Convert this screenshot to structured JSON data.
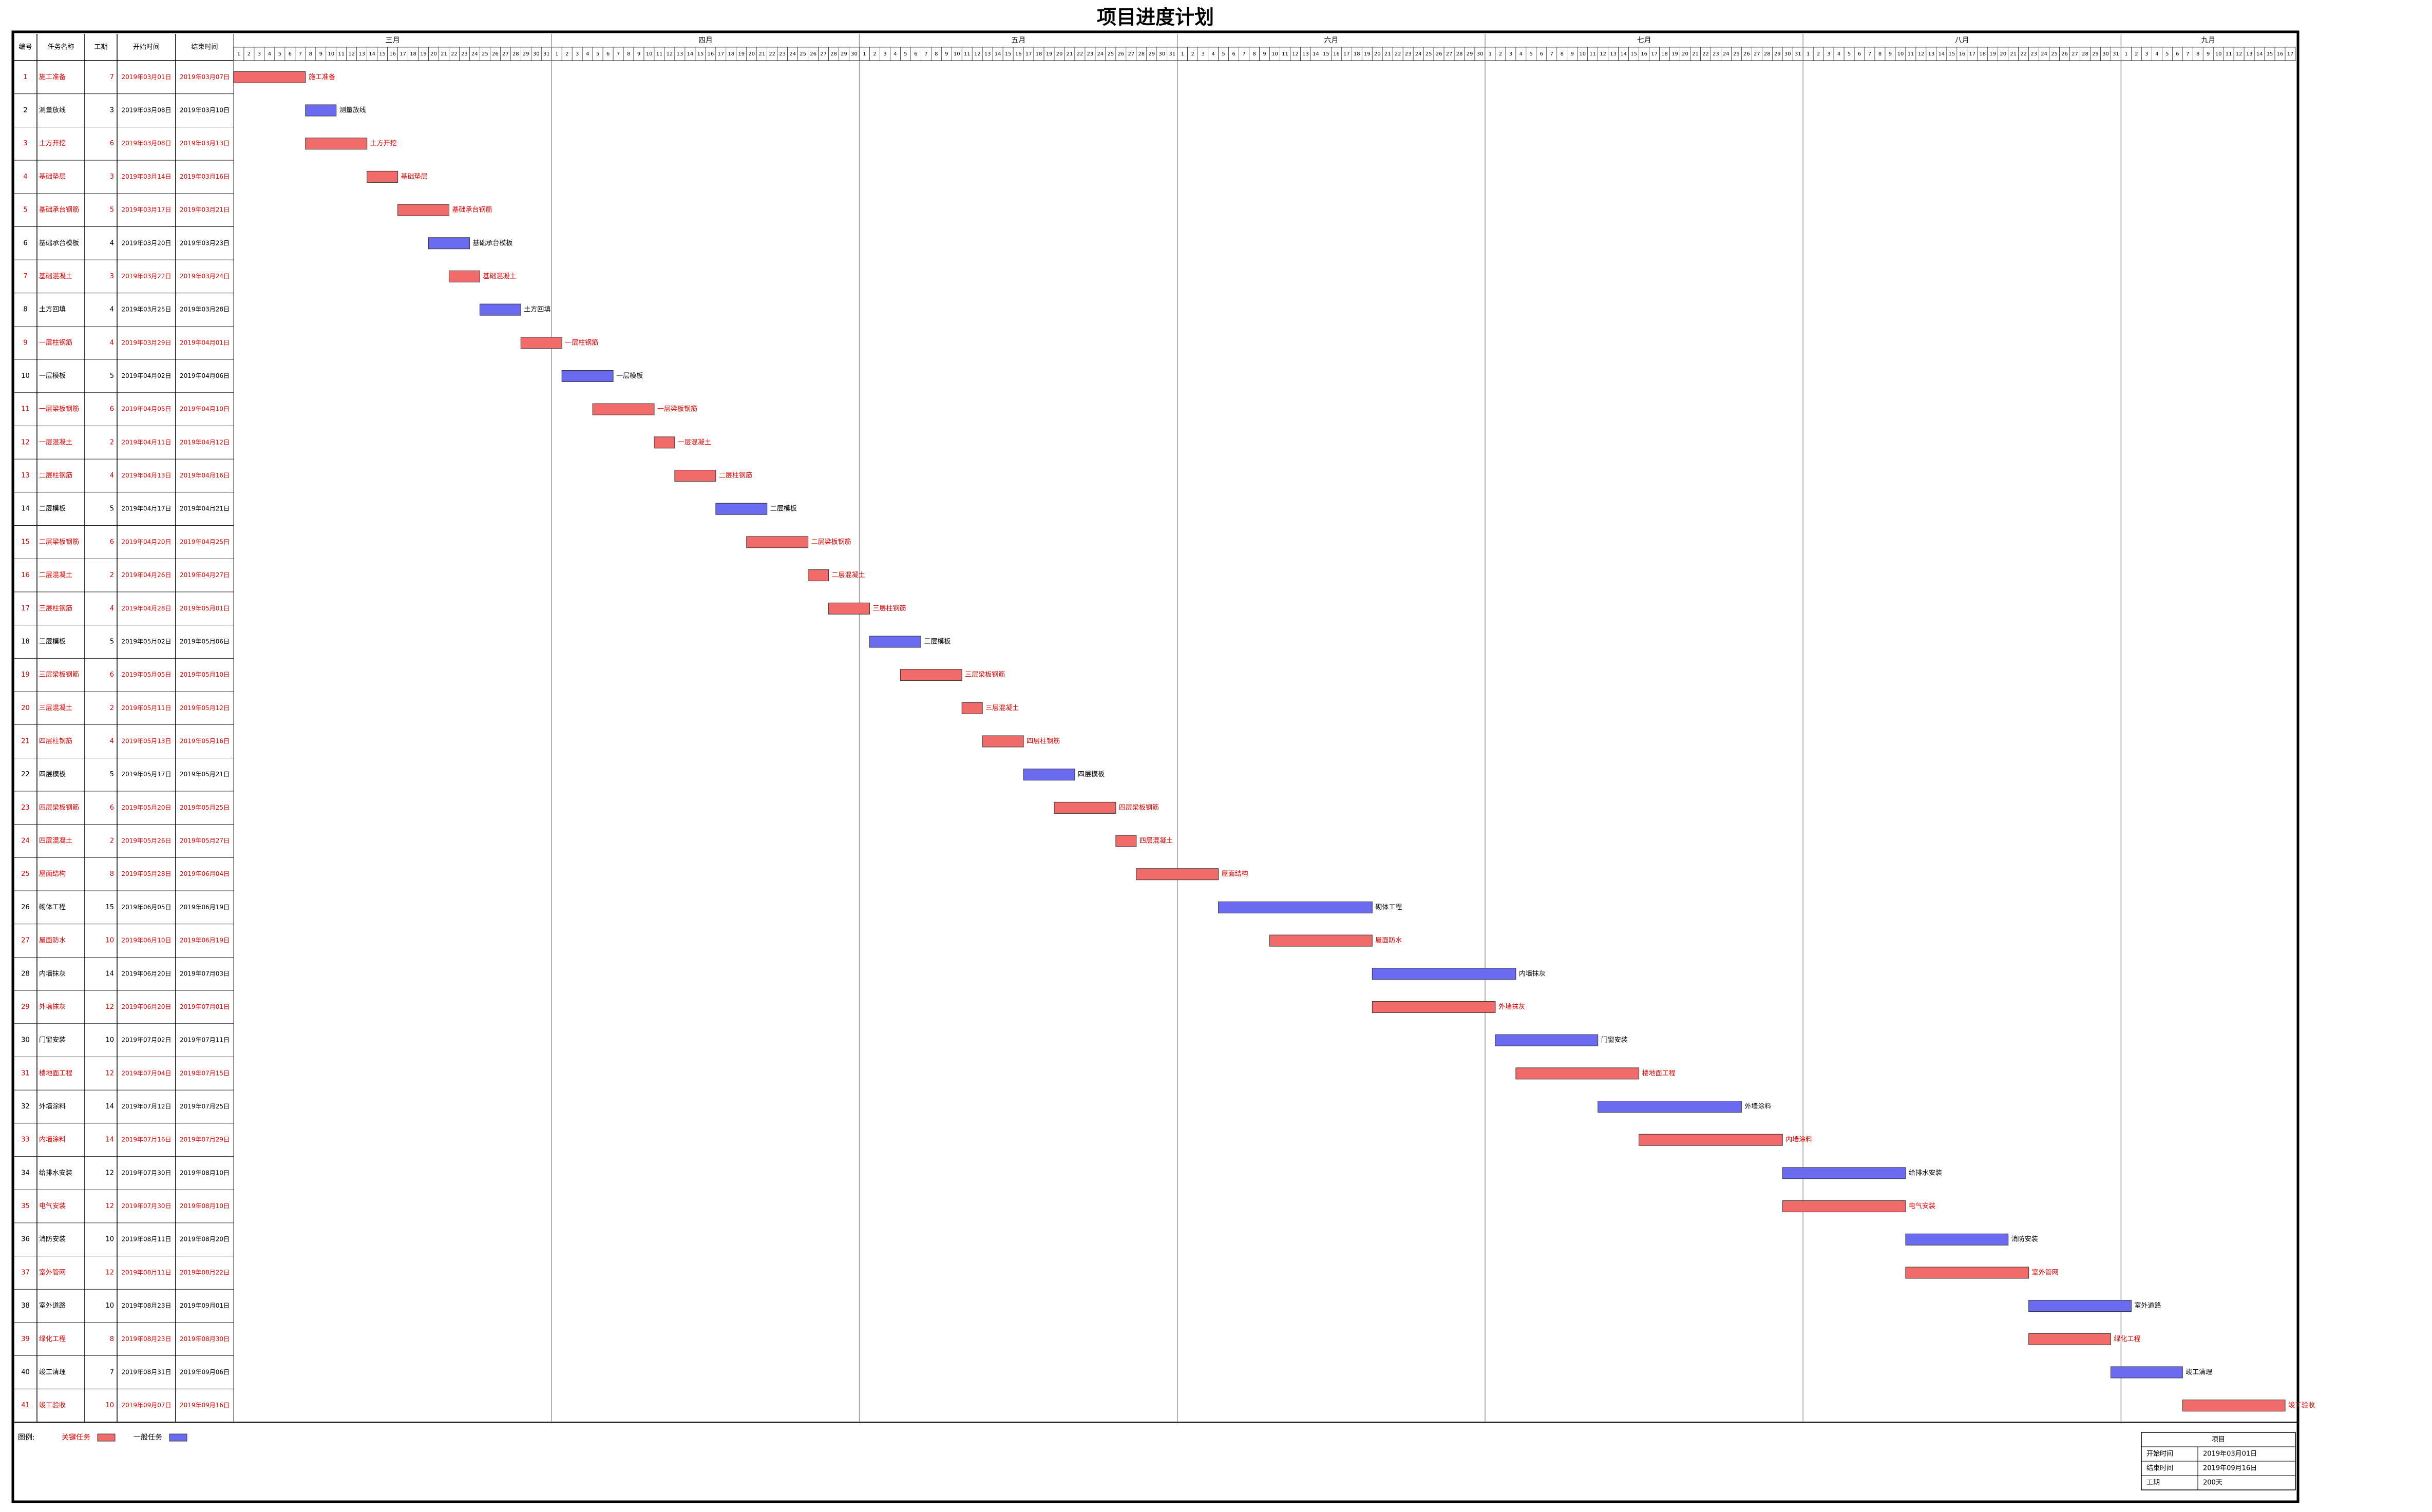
{
  "chart_data": {
    "type": "gantt",
    "title": "项目进度计划",
    "columns": [
      "编号",
      "任务名称",
      "工期",
      "开始时间",
      "结束时间"
    ],
    "months": [
      {
        "name": "三月",
        "days": [
          1,
          2,
          3,
          4,
          5,
          6,
          7,
          8,
          9,
          10,
          11,
          12,
          13,
          14,
          15,
          16,
          17,
          18,
          19,
          20,
          21,
          22,
          23,
          24,
          25,
          26,
          27,
          28,
          29,
          30,
          31
        ]
      },
      {
        "name": "四月",
        "days": [
          1,
          2,
          3,
          4,
          5,
          6,
          7,
          8,
          9,
          10,
          11,
          12,
          13,
          14,
          15,
          16,
          17,
          18,
          19,
          20,
          21,
          22,
          23,
          24,
          25,
          26,
          27,
          28,
          29,
          30
        ]
      },
      {
        "name": "五月",
        "days": [
          1,
          2,
          3,
          4,
          5,
          6,
          7,
          8,
          9,
          10,
          11,
          12,
          13,
          14,
          15,
          16,
          17,
          18,
          19,
          20,
          21,
          22,
          23,
          24,
          25,
          26,
          27,
          28,
          29,
          30,
          31
        ]
      },
      {
        "name": "六月",
        "days": [
          1,
          2,
          3,
          4,
          5,
          6,
          7,
          8,
          9,
          10,
          11,
          12,
          13,
          14,
          15,
          16,
          17,
          18,
          19,
          20,
          21,
          22,
          23,
          24,
          25,
          26,
          27,
          28,
          29,
          30
        ]
      },
      {
        "name": "七月",
        "days": [
          1,
          2,
          3,
          4,
          5,
          6,
          7,
          8,
          9,
          10,
          11,
          12,
          13,
          14,
          15,
          16,
          17,
          18,
          19,
          20,
          21,
          22,
          23,
          24,
          25,
          26,
          27,
          28,
          29,
          30,
          31
        ]
      },
      {
        "name": "八月",
        "days": [
          1,
          2,
          3,
          4,
          5,
          6,
          7,
          8,
          9,
          10,
          11,
          12,
          13,
          14,
          15,
          16,
          17,
          18,
          19,
          20,
          21,
          22,
          23,
          24,
          25,
          26,
          27,
          28,
          29,
          30,
          31
        ]
      },
      {
        "name": "九月",
        "days": [
          1,
          2,
          3,
          4,
          5,
          6,
          7,
          8,
          9,
          10,
          11,
          12,
          13,
          14,
          15,
          16,
          17
        ]
      }
    ],
    "tasks": [
      {
        "id": 1,
        "name": "施工准备",
        "duration": 7,
        "start": "2019年03月01日",
        "end": "2019年03月07日",
        "critical": true
      },
      {
        "id": 2,
        "name": "测量放线",
        "duration": 3,
        "start": "2019年03月08日",
        "end": "2019年03月10日",
        "critical": false
      },
      {
        "id": 3,
        "name": "土方开挖",
        "duration": 6,
        "start": "2019年03月08日",
        "end": "2019年03月13日",
        "critical": true
      },
      {
        "id": 4,
        "name": "基础垫层",
        "duration": 3,
        "start": "2019年03月14日",
        "end": "2019年03月16日",
        "critical": true
      },
      {
        "id": 5,
        "name": "基础承台钢筋",
        "duration": 5,
        "start": "2019年03月17日",
        "end": "2019年03月21日",
        "critical": true
      },
      {
        "id": 6,
        "name": "基础承台模板",
        "duration": 4,
        "start": "2019年03月20日",
        "end": "2019年03月23日",
        "critical": false
      },
      {
        "id": 7,
        "name": "基础混凝土",
        "duration": 3,
        "start": "2019年03月22日",
        "end": "2019年03月24日",
        "critical": true
      },
      {
        "id": 8,
        "name": "土方回填",
        "duration": 4,
        "start": "2019年03月25日",
        "end": "2019年03月28日",
        "critical": false
      },
      {
        "id": 9,
        "name": "一层柱钢筋",
        "duration": 4,
        "start": "2019年03月29日",
        "end": "2019年04月01日",
        "critical": true
      },
      {
        "id": 10,
        "name": "一层模板",
        "duration": 5,
        "start": "2019年04月02日",
        "end": "2019年04月06日",
        "critical": false
      },
      {
        "id": 11,
        "name": "一层梁板钢筋",
        "duration": 6,
        "start": "2019年04月05日",
        "end": "2019年04月10日",
        "critical": true
      },
      {
        "id": 12,
        "name": "一层混凝土",
        "duration": 2,
        "start": "2019年04月11日",
        "end": "2019年04月12日",
        "critical": true
      },
      {
        "id": 13,
        "name": "二层柱钢筋",
        "duration": 4,
        "start": "2019年04月13日",
        "end": "2019年04月16日",
        "critical": true
      },
      {
        "id": 14,
        "name": "二层模板",
        "duration": 5,
        "start": "2019年04月17日",
        "end": "2019年04月21日",
        "critical": false
      },
      {
        "id": 15,
        "name": "二层梁板钢筋",
        "duration": 6,
        "start": "2019年04月20日",
        "end": "2019年04月25日",
        "critical": true
      },
      {
        "id": 16,
        "name": "二层混凝土",
        "duration": 2,
        "start": "2019年04月26日",
        "end": "2019年04月27日",
        "critical": true
      },
      {
        "id": 17,
        "name": "三层柱钢筋",
        "duration": 4,
        "start": "2019年04月28日",
        "end": "2019年05月01日",
        "critical": true
      },
      {
        "id": 18,
        "name": "三层模板",
        "duration": 5,
        "start": "2019年05月02日",
        "end": "2019年05月06日",
        "critical": false
      },
      {
        "id": 19,
        "name": "三层梁板钢筋",
        "duration": 6,
        "start": "2019年05月05日",
        "end": "2019年05月10日",
        "critical": true
      },
      {
        "id": 20,
        "name": "三层混凝土",
        "duration": 2,
        "start": "2019年05月11日",
        "end": "2019年05月12日",
        "critical": true
      },
      {
        "id": 21,
        "name": "四层柱钢筋",
        "duration": 4,
        "start": "2019年05月13日",
        "end": "2019年05月16日",
        "critical": true
      },
      {
        "id": 22,
        "name": "四层模板",
        "duration": 5,
        "start": "2019年05月17日",
        "end": "2019年05月21日",
        "critical": false
      },
      {
        "id": 23,
        "name": "四层梁板钢筋",
        "duration": 6,
        "start": "2019年05月20日",
        "end": "2019年05月25日",
        "critical": true
      },
      {
        "id": 24,
        "name": "四层混凝土",
        "duration": 2,
        "start": "2019年05月26日",
        "end": "2019年05月27日",
        "critical": true
      },
      {
        "id": 25,
        "name": "屋面结构",
        "duration": 8,
        "start": "2019年05月28日",
        "end": "2019年06月04日",
        "critical": true
      },
      {
        "id": 26,
        "name": "砌体工程",
        "duration": 15,
        "start": "2019年06月05日",
        "end": "2019年06月19日",
        "critical": false
      },
      {
        "id": 27,
        "name": "屋面防水",
        "duration": 10,
        "start": "2019年06月10日",
        "end": "2019年06月19日",
        "critical": true
      },
      {
        "id": 28,
        "name": "内墙抹灰",
        "duration": 14,
        "start": "2019年06月20日",
        "end": "2019年07月03日",
        "critical": false
      },
      {
        "id": 29,
        "name": "外墙抹灰",
        "duration": 12,
        "start": "2019年06月20日",
        "end": "2019年07月01日",
        "critical": true
      },
      {
        "id": 30,
        "name": "门窗安装",
        "duration": 10,
        "start": "2019年07月02日",
        "end": "2019年07月11日",
        "critical": false
      },
      {
        "id": 31,
        "name": "楼地面工程",
        "duration": 12,
        "start": "2019年07月04日",
        "end": "2019年07月15日",
        "critical": true
      },
      {
        "id": 32,
        "name": "外墙涂料",
        "duration": 14,
        "start": "2019年07月12日",
        "end": "2019年07月25日",
        "critical": false
      },
      {
        "id": 33,
        "name": "内墙涂料",
        "duration": 14,
        "start": "2019年07月16日",
        "end": "2019年07月29日",
        "critical": true
      },
      {
        "id": 34,
        "name": "给排水安装",
        "duration": 12,
        "start": "2019年07月30日",
        "end": "2019年08月10日",
        "critical": false
      },
      {
        "id": 35,
        "name": "电气安装",
        "duration": 12,
        "start": "2019年07月30日",
        "end": "2019年08月10日",
        "critical": true
      },
      {
        "id": 36,
        "name": "消防安装",
        "duration": 10,
        "start": "2019年08月11日",
        "end": "2019年08月20日",
        "critical": false
      },
      {
        "id": 37,
        "name": "室外管网",
        "duration": 12,
        "start": "2019年08月11日",
        "end": "2019年08月22日",
        "critical": true
      },
      {
        "id": 38,
        "name": "室外道路",
        "duration": 10,
        "start": "2019年08月23日",
        "end": "2019年09月01日",
        "critical": false
      },
      {
        "id": 39,
        "name": "绿化工程",
        "duration": 8,
        "start": "2019年08月23日",
        "end": "2019年08月30日",
        "critical": true
      },
      {
        "id": 40,
        "name": "竣工清理",
        "duration": 7,
        "start": "2019年08月31日",
        "end": "2019年09月06日",
        "critical": false
      },
      {
        "id": 41,
        "name": "竣工验收",
        "duration": 10,
        "start": "2019年09月07日",
        "end": "2019年09月16日",
        "critical": true
      }
    ],
    "legend": {
      "label": "图例:",
      "critical": {
        "name": "关键任务",
        "color": "#f26b6b"
      },
      "normal": {
        "name": "一般任务",
        "color": "#6b6bf2"
      }
    },
    "info": {
      "title": "项目",
      "rows": [
        [
          "开始时间",
          "2019年03月01日"
        ],
        [
          "结束时间",
          "2019年09月16日"
        ],
        [
          "工期",
          "200天"
        ]
      ]
    }
  }
}
